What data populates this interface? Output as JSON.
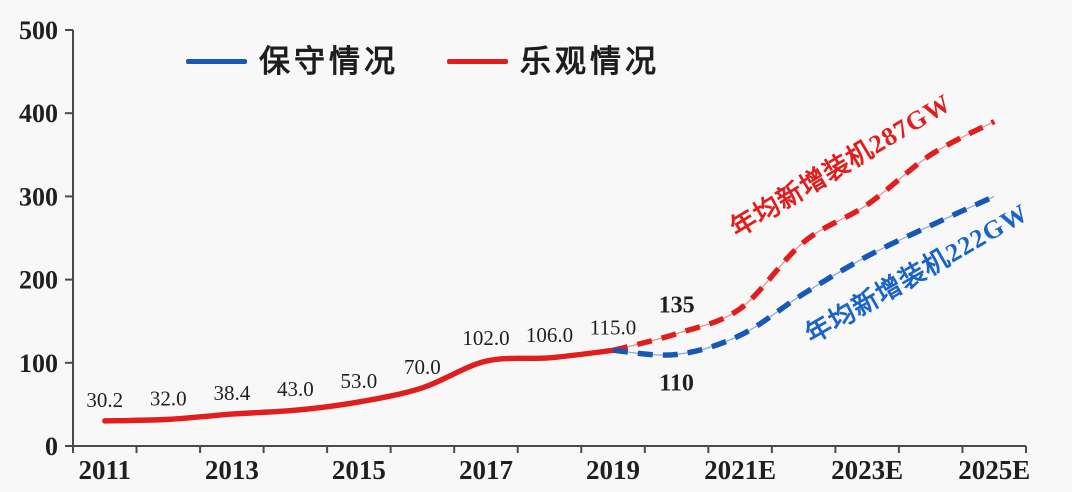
{
  "page": {
    "background": "#f8f8f9"
  },
  "legend": {
    "conservative": "保守情况",
    "optimistic": "乐观情况"
  },
  "annotations": {
    "optimistic_avg": "年均新增装机287GW",
    "conservative_avg": "年均新增装机222GW"
  },
  "colors": {
    "red": "#e11d1d",
    "blue": "#1757b5",
    "annotation_blue": "#1a64c8",
    "axis": "#4a4a4a",
    "text": "#1f1f1f"
  },
  "chart_data": {
    "type": "line",
    "unit": "GW",
    "title": "",
    "xlabel": "",
    "ylabel": "",
    "grid": false,
    "legend_position": "top",
    "categories": [
      "2011",
      "2012",
      "2013",
      "2014",
      "2015",
      "2016",
      "2017",
      "2018",
      "2019",
      "2020",
      "2021E",
      "2022E",
      "2023E",
      "2024E",
      "2025E"
    ],
    "x_ticks": [
      {
        "index": 0,
        "label": "2011"
      },
      {
        "index": 2,
        "label": "2013"
      },
      {
        "index": 4,
        "label": "2015"
      },
      {
        "index": 6,
        "label": "2017"
      },
      {
        "index": 8,
        "label": "2019"
      },
      {
        "index": 10,
        "label": "2021E"
      },
      {
        "index": 12,
        "label": "2023E"
      },
      {
        "index": 14,
        "label": "2025E"
      }
    ],
    "ylim": [
      0,
      500
    ],
    "y_ticks": [
      0,
      100,
      200,
      300,
      400,
      500
    ],
    "series": [
      {
        "name": "乐观情况",
        "segment": "historical-actual",
        "color": "red",
        "style": "solid",
        "start_index": 0,
        "values": [
          30.2,
          32.0,
          38.4,
          43.0,
          53.0,
          70.0,
          102.0,
          106.0,
          115.0
        ]
      },
      {
        "name": "乐观情况",
        "segment": "forecast",
        "color": "red",
        "style": "dashed",
        "start_index": 8,
        "values": [
          115.0,
          135,
          165,
          245,
          290,
          350,
          390
        ]
      },
      {
        "name": "保守情况",
        "segment": "forecast",
        "color": "blue",
        "style": "dashed",
        "start_index": 8,
        "values": [
          115.0,
          110,
          133,
          183,
          228,
          265,
          300
        ]
      }
    ],
    "point_labels": [
      {
        "text": "30.2",
        "index": 0,
        "value": 30.2,
        "dy": -14,
        "bold": false
      },
      {
        "text": "32.0",
        "index": 1,
        "value": 32.0,
        "dy": -14,
        "bold": false
      },
      {
        "text": "38.4",
        "index": 2,
        "value": 38.4,
        "dy": -14,
        "bold": false
      },
      {
        "text": "43.0",
        "index": 3,
        "value": 43.0,
        "dy": -14,
        "bold": false
      },
      {
        "text": "53.0",
        "index": 4,
        "value": 53.0,
        "dy": -14,
        "bold": false
      },
      {
        "text": "70.0",
        "index": 5,
        "value": 70.0,
        "dy": -14,
        "bold": false
      },
      {
        "text": "102.0",
        "index": 6,
        "value": 102.0,
        "dy": -16,
        "bold": false
      },
      {
        "text": "106.0",
        "index": 7,
        "value": 106.0,
        "dy": -16,
        "bold": false
      },
      {
        "text": "115.0",
        "index": 8,
        "value": 115.0,
        "dy": -16,
        "bold": false
      },
      {
        "text": "135",
        "index": 9,
        "value": 135,
        "dy": -21,
        "bold": true
      },
      {
        "text": "110",
        "index": 9,
        "value": 110,
        "dy": 36,
        "bold": true
      }
    ]
  }
}
